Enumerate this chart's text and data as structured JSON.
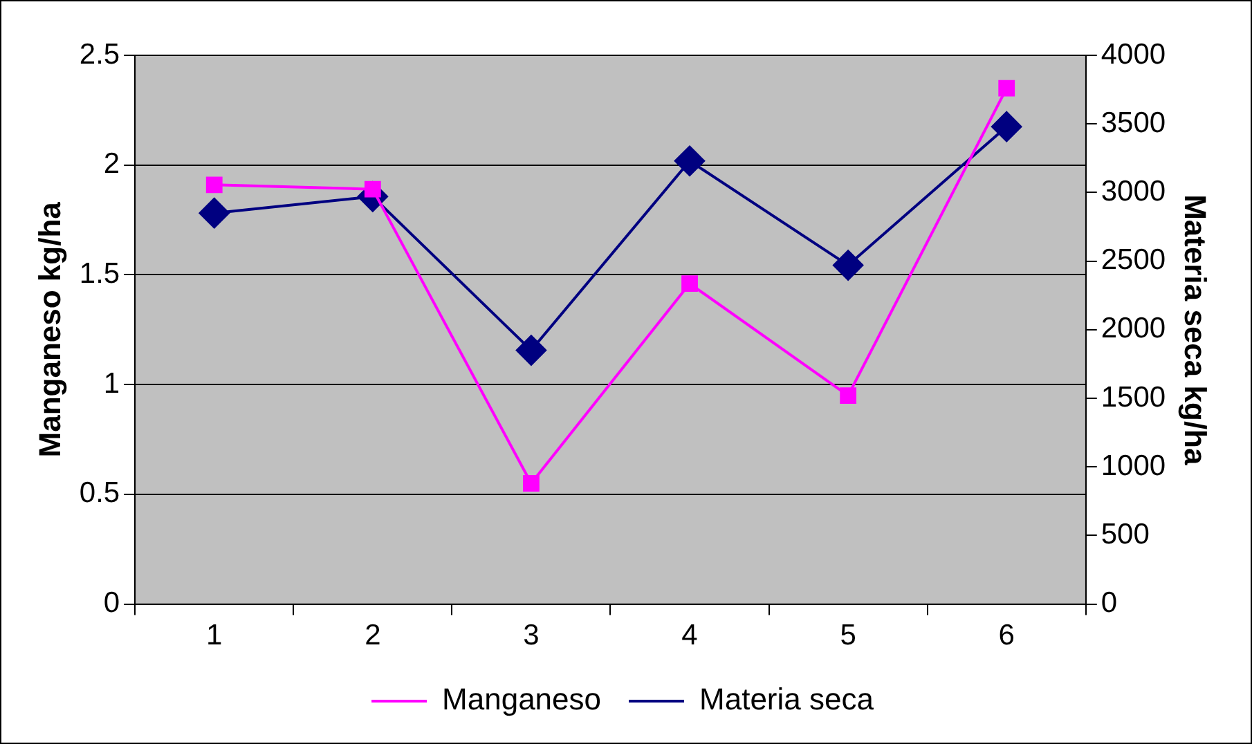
{
  "chart_data": {
    "type": "line",
    "ylabel": "Manganeso kg/ha",
    "y2label": "Materia seca kg/ha",
    "categories": [
      "1",
      "2",
      "3",
      "4",
      "5",
      "6"
    ],
    "series": [
      {
        "name": "Manganeso",
        "color": "#ff00ff",
        "marker": "square",
        "values": [
          1.91,
          1.89,
          0.55,
          1.46,
          0.95,
          2.35
        ]
      },
      {
        "name": "Materia seca",
        "color": "#000080",
        "marker": "diamond",
        "axis": "y2",
        "values": [
          2850,
          2970,
          1850,
          3230,
          2470,
          3480
        ]
      }
    ],
    "ylim": [
      0,
      2.5
    ],
    "yticks": [
      0,
      0.5,
      1,
      1.5,
      2,
      2.5
    ],
    "y2lim": [
      0,
      4000
    ],
    "y2ticks": [
      0,
      500,
      1000,
      1500,
      2000,
      2500,
      3000,
      3500,
      4000
    ],
    "grid": "y",
    "legend": "bottom",
    "line_style": "solid"
  }
}
